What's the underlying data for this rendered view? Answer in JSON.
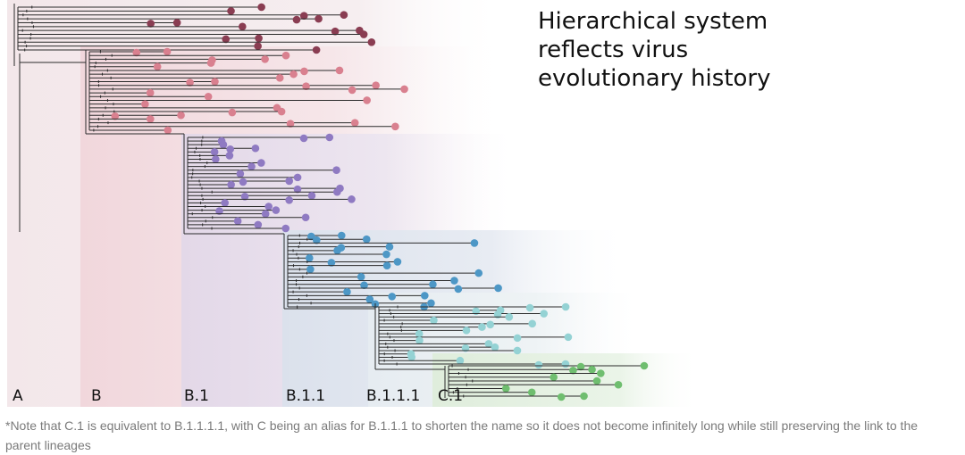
{
  "title_lines": [
    "Hierarchical system",
    "reflects virus",
    "evolutionary history"
  ],
  "lineages": [
    {
      "name": "A",
      "color": "#8a3d52",
      "tint": "#f3e7ea"
    },
    {
      "name": "B",
      "color": "#d9808f",
      "tint": "#f3dade"
    },
    {
      "name": "B.1",
      "color": "#8f7ac2",
      "tint": "#e6dcea"
    },
    {
      "name": "B.1.1",
      "color": "#4d97c6",
      "tint": "#dee4ee"
    },
    {
      "name": "B.1.1.1",
      "color": "#94d2d4",
      "tint": "#e9eef2"
    },
    {
      "name": "C.1",
      "color": "#6fbe6f",
      "tint": "#e5efe2"
    }
  ],
  "footnote": "*Note that C.1 is equivalent to B.1.1.1.1, with C being an alias for B.1.1.1 to shorten the name so it does not become infinitely long while still preserving the link to the parent lineages"
}
